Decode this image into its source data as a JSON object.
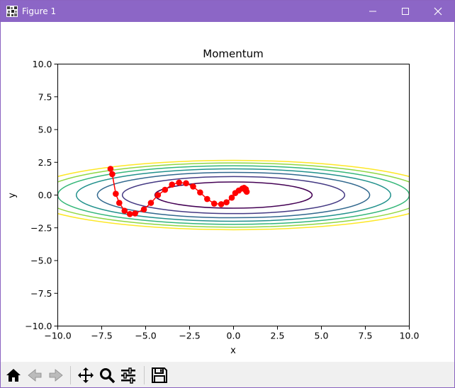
{
  "window": {
    "title": "Figure 1"
  },
  "colors": {
    "titlebar": "#8c66c6",
    "path": "#ff0000",
    "toolbar": "#f0f0f0"
  },
  "toolbar": {
    "items": [
      {
        "name": "home-button",
        "icon": "home-icon"
      },
      {
        "name": "back-button",
        "icon": "back-arrow-icon"
      },
      {
        "name": "forward-button",
        "icon": "forward-arrow-icon"
      },
      {
        "name": "pan-button",
        "icon": "move-arrows-icon"
      },
      {
        "name": "zoom-button",
        "icon": "magnifier-icon"
      },
      {
        "name": "configure-subplots-button",
        "icon": "sliders-icon"
      },
      {
        "name": "save-button",
        "icon": "floppy-disk-icon"
      }
    ]
  },
  "chart_data": {
    "type": "line",
    "title": "Momentum",
    "xlabel": "x",
    "ylabel": "y",
    "xlim": [
      -10,
      10
    ],
    "ylim": [
      -10,
      10
    ],
    "xticks": [
      "−10.0",
      "−7.5",
      "−5.0",
      "−2.5",
      "0.0",
      "2.5",
      "5.0",
      "7.5",
      "10.0"
    ],
    "yticks": [
      "−10.0",
      "−7.5",
      "−5.0",
      "−2.5",
      "0.0",
      "2.5",
      "5.0",
      "7.5",
      "10.0"
    ],
    "contours": {
      "function": "x^2/20 + y^2",
      "levels": [
        1,
        2,
        3,
        4,
        5,
        6,
        7
      ],
      "colors": [
        "#440154",
        "#443983",
        "#31688e",
        "#21918c",
        "#35b779",
        "#90d743",
        "#fde725"
      ]
    },
    "series": [
      {
        "marker": "o",
        "color": "#ff0000",
        "x": [
          -7.0,
          -6.9,
          -6.7,
          -6.5,
          -6.2,
          -5.9,
          -5.6,
          -5.1,
          -4.7,
          -4.3,
          -3.9,
          -3.5,
          -3.1,
          -2.7,
          -2.3,
          -1.9,
          -1.5,
          -1.1,
          -0.7,
          -0.4,
          -0.1,
          0.1,
          0.3,
          0.5,
          0.6,
          0.7,
          0.7,
          0.75
        ],
        "y": [
          2.0,
          1.6,
          0.1,
          -0.6,
          -1.2,
          -1.45,
          -1.4,
          -1.1,
          -0.6,
          0.0,
          0.4,
          0.8,
          0.95,
          0.9,
          0.65,
          0.2,
          -0.3,
          -0.65,
          -0.7,
          -0.55,
          -0.2,
          0.15,
          0.35,
          0.5,
          0.55,
          0.45,
          0.35,
          0.25
        ]
      }
    ],
    "grid": false
  }
}
